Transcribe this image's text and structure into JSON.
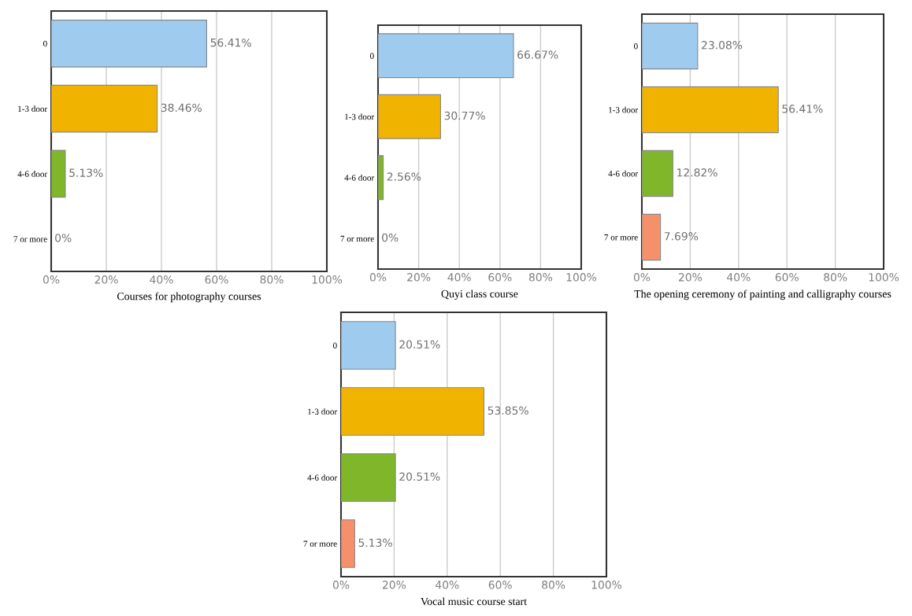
{
  "chart_data": [
    {
      "type": "bar",
      "orientation": "horizontal",
      "title": "Courses for photography courses",
      "categories": [
        "0",
        "1-3 door",
        "4-6 door",
        "7 or more"
      ],
      "values": [
        56.41,
        38.46,
        5.13,
        0
      ],
      "value_labels": [
        "56.41%",
        "38.46%",
        "5.13%",
        "0%"
      ],
      "colors": [
        "#9fcbef",
        "#f0b400",
        "#7fb62a",
        "#f4916a"
      ],
      "xlim": [
        0,
        100
      ],
      "xticks": [
        {
          "value": 0,
          "label": "0%"
        },
        {
          "value": 20,
          "label": "20%"
        },
        {
          "value": 40,
          "label": "40%"
        },
        {
          "value": 60,
          "label": "60%"
        },
        {
          "value": 80,
          "label": "80%"
        },
        {
          "value": 100,
          "label": "100%"
        }
      ],
      "grid": "x"
    },
    {
      "type": "bar",
      "orientation": "horizontal",
      "title": "Quyi class course",
      "categories": [
        "0",
        "1-3 door",
        "4-6 door",
        "7 or more"
      ],
      "values": [
        66.67,
        30.77,
        2.56,
        0
      ],
      "value_labels": [
        "66.67%",
        "30.77%",
        "2.56%",
        "0%"
      ],
      "colors": [
        "#9fcbef",
        "#f0b400",
        "#7fb62a",
        "#f4916a"
      ],
      "xlim": [
        0,
        100
      ],
      "xticks": [
        {
          "value": 0,
          "label": "0%"
        },
        {
          "value": 20,
          "label": "20%"
        },
        {
          "value": 40,
          "label": "40%"
        },
        {
          "value": 60,
          "label": "60%"
        },
        {
          "value": 80,
          "label": "80%"
        },
        {
          "value": 100,
          "label": "100%"
        }
      ],
      "grid": "x"
    },
    {
      "type": "bar",
      "orientation": "horizontal",
      "title": "The opening ceremony of painting and calligraphy courses",
      "categories": [
        "0",
        "1-3 door",
        "4-6 door",
        "7 or more"
      ],
      "values": [
        23.08,
        56.41,
        12.82,
        7.69
      ],
      "value_labels": [
        "23.08%",
        "56.41%",
        "12.82%",
        "7.69%"
      ],
      "colors": [
        "#9fcbef",
        "#f0b400",
        "#7fb62a",
        "#f4916a"
      ],
      "xlim": [
        0,
        100
      ],
      "xticks": [
        {
          "value": 0,
          "label": "0%"
        },
        {
          "value": 20,
          "label": "20%"
        },
        {
          "value": 40,
          "label": "40%"
        },
        {
          "value": 60,
          "label": "60%"
        },
        {
          "value": 80,
          "label": "80%"
        },
        {
          "value": 100,
          "label": "100%"
        }
      ],
      "grid": "x"
    },
    {
      "type": "bar",
      "orientation": "horizontal",
      "title": "Vocal music course start",
      "categories": [
        "0",
        "1-3 door",
        "4-6 door",
        "7 or more"
      ],
      "values": [
        20.51,
        53.85,
        20.51,
        5.13
      ],
      "value_labels": [
        "20.51%",
        "53.85%",
        "20.51%",
        "5.13%"
      ],
      "colors": [
        "#9fcbef",
        "#f0b400",
        "#7fb62a",
        "#f4916a"
      ],
      "xlim": [
        0,
        100
      ],
      "xticks": [
        {
          "value": 0,
          "label": "0%"
        },
        {
          "value": 20,
          "label": "20%"
        },
        {
          "value": 40,
          "label": "40%"
        },
        {
          "value": 60,
          "label": "60%"
        },
        {
          "value": 80,
          "label": "80%"
        },
        {
          "value": 100,
          "label": "100%"
        }
      ],
      "grid": "x"
    }
  ]
}
